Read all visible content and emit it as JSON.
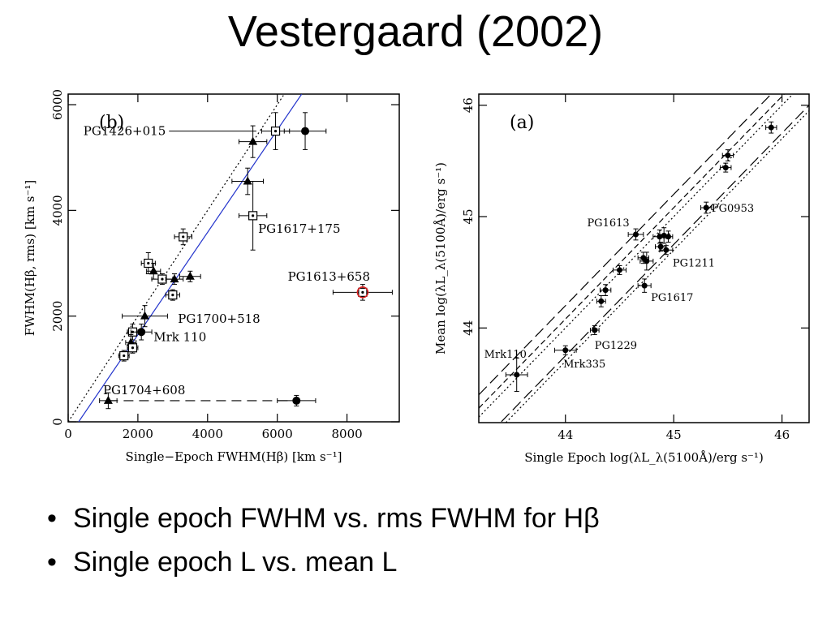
{
  "slide": {
    "title": "Vestergaard (2002)",
    "bullets": [
      "Single epoch FWHM vs. rms FWHM for Hβ",
      "Single epoch L vs. mean L"
    ]
  },
  "chart_data": [
    {
      "type": "scatter",
      "panel_label": "(b)",
      "xlabel": "Single−Epoch FWHM(Hβ) [km s⁻¹]",
      "ylabel": "FWHM(Hβ, rms) [km s⁻¹]",
      "xlim": [
        0,
        9500
      ],
      "ylim": [
        0,
        6200
      ],
      "xticks": [
        0,
        2000,
        4000,
        6000,
        8000
      ],
      "yticks": [
        0,
        2000,
        4000,
        6000
      ],
      "reference_lines": [
        {
          "style": "dotted",
          "points": [
            [
              0,
              0
            ],
            [
              6200,
              6200
            ]
          ]
        },
        {
          "style": "solid",
          "color": "#2233cc",
          "points": [
            [
              300,
              0
            ],
            [
              6700,
              6200
            ]
          ]
        }
      ],
      "dashed_links": [
        {
          "from": [
            1150,
            400
          ],
          "to": [
            6550,
            400
          ]
        }
      ],
      "points": [
        {
          "x": 6800,
          "y": 5500,
          "marker": "circle",
          "xerr": 600,
          "yerr": 350
        },
        {
          "x": 5950,
          "y": 5500,
          "marker": "open-square",
          "xerr": 400,
          "yerr": 350
        },
        {
          "x": 5300,
          "y": 5300,
          "marker": "triangle",
          "xerr": 400,
          "yerr": 300
        },
        {
          "x": 5150,
          "y": 4550,
          "marker": "triangle",
          "xerr": 450,
          "yerr": 250
        },
        {
          "x": 5300,
          "y": 3900,
          "marker": "open-square",
          "xerr": 400,
          "yerr": 650
        },
        {
          "x": 3300,
          "y": 3500,
          "marker": "open-square",
          "xerr": 250,
          "yerr": 150
        },
        {
          "x": 2300,
          "y": 3000,
          "marker": "open-square",
          "xerr": 200,
          "yerr": 200
        },
        {
          "x": 2450,
          "y": 2850,
          "marker": "triangle",
          "xerr": 200,
          "yerr": 150
        },
        {
          "x": 2700,
          "y": 2700,
          "marker": "open-square",
          "xerr": 300,
          "yerr": 100
        },
        {
          "x": 3050,
          "y": 2700,
          "marker": "triangle",
          "xerr": 250,
          "yerr": 100
        },
        {
          "x": 3500,
          "y": 2750,
          "marker": "triangle",
          "xerr": 300,
          "yerr": 100
        },
        {
          "x": 3000,
          "y": 2400,
          "marker": "open-square",
          "xerr": 200,
          "yerr": 100
        },
        {
          "x": 8450,
          "y": 2450,
          "marker": "open-square-red",
          "xerr": 850,
          "yerr": 150
        },
        {
          "x": 2200,
          "y": 2000,
          "marker": "triangle",
          "xerr": 650,
          "yerr": 200
        },
        {
          "x": 1850,
          "y": 1700,
          "marker": "open-square",
          "xerr": 150,
          "yerr": 150
        },
        {
          "x": 2100,
          "y": 1700,
          "marker": "circle",
          "xerr": 300,
          "yerr": 150
        },
        {
          "x": 1800,
          "y": 1500,
          "marker": "triangle",
          "xerr": 150,
          "yerr": 150
        },
        {
          "x": 1850,
          "y": 1400,
          "marker": "open-square",
          "xerr": 150,
          "yerr": 100
        },
        {
          "x": 1600,
          "y": 1250,
          "marker": "open-square",
          "xerr": 150,
          "yerr": 100
        },
        {
          "x": 1150,
          "y": 400,
          "marker": "triangle",
          "xerr": 250,
          "yerr": 150
        },
        {
          "x": 6550,
          "y": 400,
          "marker": "circle",
          "xerr": 550,
          "yerr": 100
        }
      ],
      "annotations": [
        {
          "text": "PG1426+015",
          "x": 2800,
          "y": 5500,
          "anchor": "end",
          "leader_to": [
            5400,
            5500
          ]
        },
        {
          "text": "PG1617+175",
          "x": 5450,
          "y": 3650,
          "anchor": "start"
        },
        {
          "text": "PG1613+658",
          "x": 6300,
          "y": 2750,
          "anchor": "start"
        },
        {
          "text": "PG1700+518",
          "x": 3150,
          "y": 1950,
          "anchor": "start"
        },
        {
          "text": "Mrk 110",
          "x": 2450,
          "y": 1600,
          "anchor": "start"
        },
        {
          "text": "PG1704+608",
          "x": 1000,
          "y": 600,
          "anchor": "start"
        }
      ]
    },
    {
      "type": "scatter",
      "panel_label": "(a)",
      "xlabel": "Single Epoch log(λL_λ(5100Å)/erg s⁻¹)",
      "ylabel": "Mean log(λL_λ(5100Å)/erg s⁻¹)",
      "xlim": [
        43.2,
        46.25
      ],
      "ylim": [
        43.15,
        46.1
      ],
      "xticks": [
        44,
        45,
        46
      ],
      "yticks": [
        44,
        45,
        46
      ],
      "reference_lines": [
        {
          "style": "dashed",
          "points": [
            [
              43.2,
              43.28
            ],
            [
              46.25,
              46.33
            ]
          ]
        },
        {
          "style": "dotted",
          "points": [
            [
              43.2,
              43.2
            ],
            [
              46.25,
              46.25
            ]
          ]
        },
        {
          "style": "long-dashed",
          "points": [
            [
              43.2,
              43.4
            ],
            [
              46.25,
              46.45
            ]
          ]
        },
        {
          "style": "long-dashed",
          "points": [
            [
              43.2,
              42.95
            ],
            [
              46.25,
              46.0
            ]
          ]
        },
        {
          "style": "dotted",
          "points": [
            [
              43.45,
              43.15
            ],
            [
              46.25,
              45.95
            ]
          ]
        }
      ],
      "points": [
        {
          "x": 45.9,
          "y": 45.8,
          "xerr": 0.05,
          "yerr": 0.05
        },
        {
          "x": 45.5,
          "y": 45.55,
          "xerr": 0.05,
          "yerr": 0.05
        },
        {
          "x": 45.48,
          "y": 45.44,
          "xerr": 0.05,
          "yerr": 0.04
        },
        {
          "x": 45.3,
          "y": 45.08,
          "xerr": 0.05,
          "yerr": 0.05
        },
        {
          "x": 44.65,
          "y": 44.84,
          "xerr": 0.07,
          "yerr": 0.05
        },
        {
          "x": 44.87,
          "y": 44.82,
          "xerr": 0.06,
          "yerr": 0.06
        },
        {
          "x": 44.91,
          "y": 44.83,
          "xerr": 0.05,
          "yerr": 0.07
        },
        {
          "x": 44.95,
          "y": 44.82,
          "xerr": 0.04,
          "yerr": 0.05
        },
        {
          "x": 44.88,
          "y": 44.73,
          "xerr": 0.05,
          "yerr": 0.04
        },
        {
          "x": 44.93,
          "y": 44.7,
          "xerr": 0.06,
          "yerr": 0.04
        },
        {
          "x": 44.72,
          "y": 44.63,
          "xerr": 0.05,
          "yerr": 0.05
        },
        {
          "x": 44.75,
          "y": 44.6,
          "xerr": 0.06,
          "yerr": 0.08
        },
        {
          "x": 44.5,
          "y": 44.52,
          "xerr": 0.06,
          "yerr": 0.04
        },
        {
          "x": 44.73,
          "y": 44.38,
          "xerr": 0.06,
          "yerr": 0.06
        },
        {
          "x": 44.37,
          "y": 44.34,
          "xerr": 0.05,
          "yerr": 0.05
        },
        {
          "x": 44.33,
          "y": 44.24,
          "xerr": 0.04,
          "yerr": 0.05
        },
        {
          "x": 44.27,
          "y": 43.98,
          "xerr": 0.04,
          "yerr": 0.04
        },
        {
          "x": 44.0,
          "y": 43.8,
          "xerr": 0.1,
          "yerr": 0.04
        },
        {
          "x": 43.55,
          "y": 43.58,
          "xerr": 0.1,
          "yerr": 0.15
        }
      ],
      "annotations": [
        {
          "text": "PG1613",
          "x": 44.2,
          "y": 44.95,
          "anchor": "start"
        },
        {
          "text": "PG0953",
          "x": 45.35,
          "y": 45.08,
          "anchor": "start"
        },
        {
          "text": "PG1211",
          "x": 44.99,
          "y": 44.59,
          "anchor": "start"
        },
        {
          "text": "PG1617",
          "x": 44.79,
          "y": 44.28,
          "anchor": "start"
        },
        {
          "text": "PG1229",
          "x": 44.27,
          "y": 43.85,
          "anchor": "start"
        },
        {
          "text": "Mrk110",
          "x": 43.25,
          "y": 43.77,
          "anchor": "start"
        },
        {
          "text": "Mrk335",
          "x": 43.98,
          "y": 43.68,
          "anchor": "start"
        }
      ]
    }
  ]
}
